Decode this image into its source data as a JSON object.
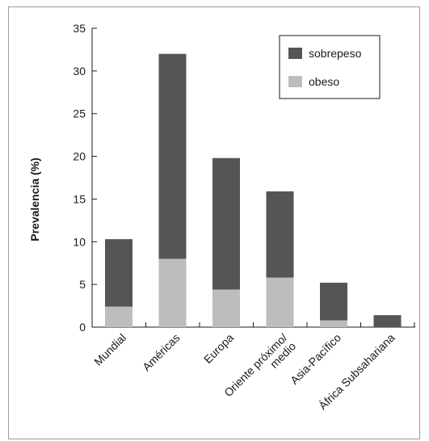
{
  "chart_data": {
    "type": "bar",
    "stacked": true,
    "categories": [
      "Mundial",
      "Américas",
      "Europa",
      "Oriente próximo/\nmedio",
      "Asia-Pacífico",
      "África Subsahariana"
    ],
    "series": [
      {
        "name": "obeso",
        "values": [
          2.4,
          8.0,
          4.4,
          5.8,
          0.8,
          0.0
        ],
        "color": "#bdbdbd"
      },
      {
        "name": "sobrepeso",
        "values": [
          7.9,
          24.0,
          15.4,
          10.1,
          4.4,
          1.4
        ],
        "color": "#555555"
      }
    ],
    "totals": [
      10.3,
      32.0,
      19.8,
      15.9,
      5.2,
      1.4
    ],
    "title": "",
    "xlabel": "",
    "ylabel": "Prevalencia (%)",
    "ylim": [
      0,
      35
    ],
    "yticks": [
      0,
      5,
      10,
      15,
      20,
      25,
      30,
      35
    ],
    "grid": false,
    "legend": {
      "position": "top-right",
      "entries": [
        {
          "label": "sobrepeso",
          "color": "#555555"
        },
        {
          "label": "obeso",
          "color": "#bdbdbd"
        }
      ]
    }
  }
}
